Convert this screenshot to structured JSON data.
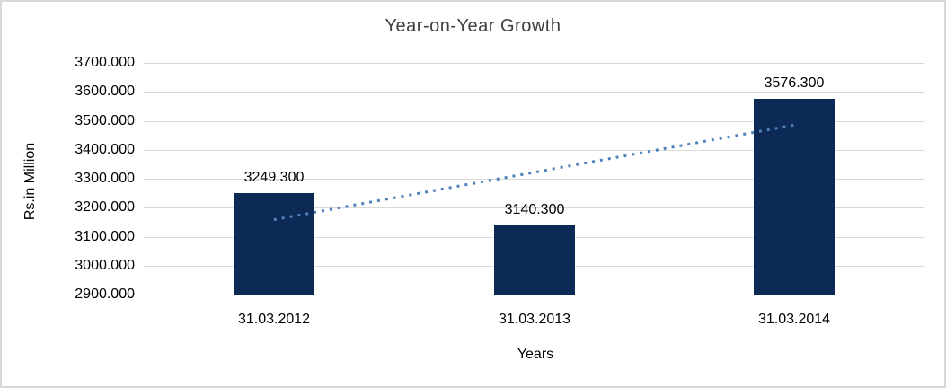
{
  "chart_data": {
    "type": "bar",
    "title": "Year-on-Year Growth",
    "xlabel": "Years",
    "ylabel": "Rs.in Million",
    "categories": [
      "31.03.2012",
      "31.03.2013",
      "31.03.2014"
    ],
    "values": [
      3249.3,
      3140.3,
      3576.3
    ],
    "data_labels": [
      "3249.300",
      "3140.300",
      "3576.300"
    ],
    "ylim": [
      2900,
      3700
    ],
    "ytick_step": 100,
    "ytick_labels": [
      "3700.000",
      "3600.000",
      "3500.000",
      "3400.000",
      "3300.000",
      "3200.000",
      "3100.000",
      "3000.000",
      "2900.000"
    ],
    "grid": "horizontal",
    "legend": "none",
    "trendline": {
      "type": "linear",
      "style": "dotted",
      "endpoints": [
        3158.5,
        3485.5
      ]
    },
    "colors": {
      "bar": "#0d2a56",
      "trendline": "#4f81bd",
      "gridline": "#d9d9d9",
      "title_text": "#3f3f3f",
      "axis_text": "#000000",
      "frame_border": "#d8d8d8",
      "background": "#ffffff"
    }
  }
}
